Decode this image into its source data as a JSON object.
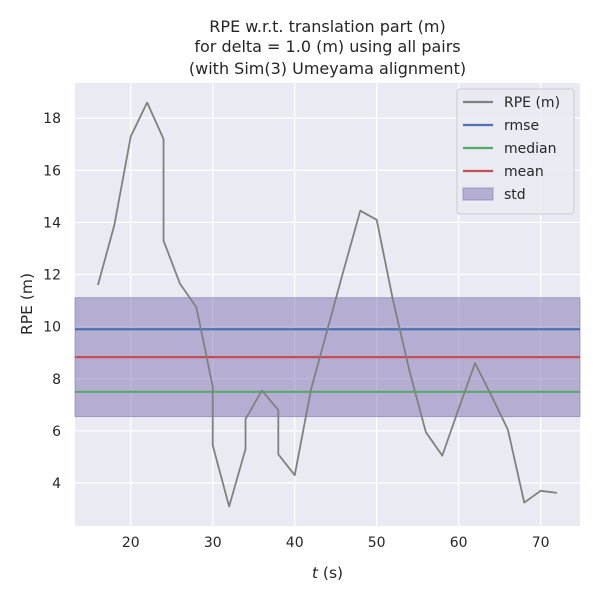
{
  "chart_data": {
    "type": "line",
    "title_lines": [
      "RPE w.r.t. translation part (m)",
      "for delta = 1.0 (m) using all pairs",
      "(with Sim(3) Umeyama alignment)"
    ],
    "xlabel_var": "t",
    "xlabel_unit": " (s)",
    "ylabel": "RPE (m)",
    "xlim": [
      13.2,
      74.8
    ],
    "ylim": [
      2.35,
      19.35
    ],
    "xticks": [
      20,
      30,
      40,
      50,
      60,
      70
    ],
    "yticks": [
      4,
      6,
      8,
      10,
      12,
      14,
      16,
      18
    ],
    "grid": true,
    "legend_position": "top-right",
    "series": [
      {
        "name": "RPE (m)",
        "color": "#808080",
        "x": [
          16,
          18,
          20,
          22,
          24,
          24,
          26,
          28,
          30,
          30,
          32,
          34,
          34,
          36,
          38,
          38,
          40,
          42,
          44,
          46,
          48,
          50,
          52,
          54,
          56,
          58,
          60,
          62,
          64,
          66,
          68,
          70,
          72
        ],
        "y": [
          11.6,
          13.9,
          17.3,
          18.6,
          17.2,
          13.3,
          11.65,
          10.75,
          7.7,
          5.45,
          3.1,
          5.3,
          6.45,
          7.55,
          6.8,
          5.1,
          4.3,
          7.6,
          9.9,
          12.2,
          14.45,
          14.1,
          11.0,
          8.3,
          5.95,
          5.05,
          6.85,
          8.6,
          7.35,
          6.05,
          3.25,
          3.7,
          3.62
        ]
      }
    ],
    "statistics": [
      {
        "name": "rmse",
        "value": 9.9,
        "color": "#4c72b0"
      },
      {
        "name": "median",
        "value": 7.5,
        "color": "#55a868"
      },
      {
        "name": "mean",
        "value": 8.83,
        "color": "#c44e52"
      }
    ],
    "std_band": {
      "name": "std",
      "lower": 6.55,
      "upper": 11.11,
      "color": "#8172b2"
    },
    "colors": {
      "plot_background": "#eaeaf2",
      "grid": "#ffffff"
    }
  }
}
